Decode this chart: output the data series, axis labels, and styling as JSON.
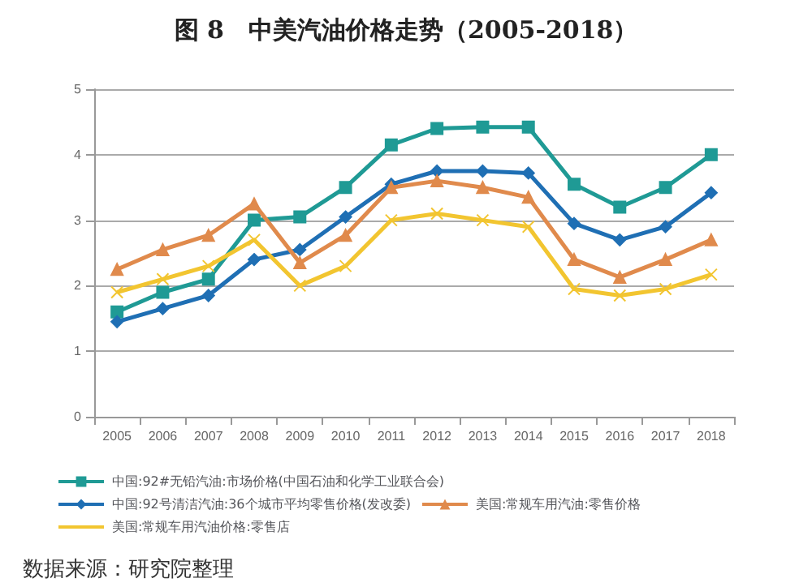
{
  "chart_data": {
    "type": "line",
    "title": "图 8　中美汽油价格走势（2005-2018）",
    "categories": [
      "2005",
      "2006",
      "2007",
      "2008",
      "2009",
      "2010",
      "2011",
      "2012",
      "2013",
      "2014",
      "2015",
      "2016",
      "2017",
      "2018"
    ],
    "series": [
      {
        "name": "中国:92#无铅汽油:市场价格(中国石油和化学工业联合会)",
        "color": "#1f9a95",
        "marker": "square",
        "values": [
          1.6,
          1.9,
          2.1,
          3.0,
          3.05,
          3.5,
          4.15,
          4.4,
          4.42,
          4.42,
          3.55,
          3.2,
          3.5,
          4.0
        ]
      },
      {
        "name": "中国:92号清洁汽油:36个城市平均零售价格(发改委)",
        "color": "#1f6fb4",
        "marker": "diamond",
        "values": [
          1.45,
          1.65,
          1.85,
          2.4,
          2.55,
          3.05,
          3.55,
          3.75,
          3.75,
          3.72,
          2.95,
          2.7,
          2.9,
          3.42
        ]
      },
      {
        "name": "美国:常规车用汽油:零售价格",
        "color": "#e08a4c",
        "marker": "triangle",
        "values": [
          2.25,
          2.55,
          2.77,
          3.25,
          2.35,
          2.77,
          3.5,
          3.6,
          3.5,
          3.35,
          2.4,
          2.13,
          2.4,
          2.7
        ]
      },
      {
        "name": "美国:常规车用汽油价格:零售店",
        "color": "#f2c530",
        "marker": "cross",
        "values": [
          1.9,
          2.1,
          2.3,
          2.7,
          2.0,
          2.3,
          3.0,
          3.1,
          3.0,
          2.9,
          1.95,
          1.85,
          1.95,
          2.17
        ]
      }
    ],
    "ylim": [
      0,
      5
    ],
    "yticks": [
      0,
      1,
      2,
      3,
      4,
      5
    ],
    "grid": "y",
    "legend": "bottom",
    "annotations": [
      "数据来源：研究院整理"
    ]
  }
}
